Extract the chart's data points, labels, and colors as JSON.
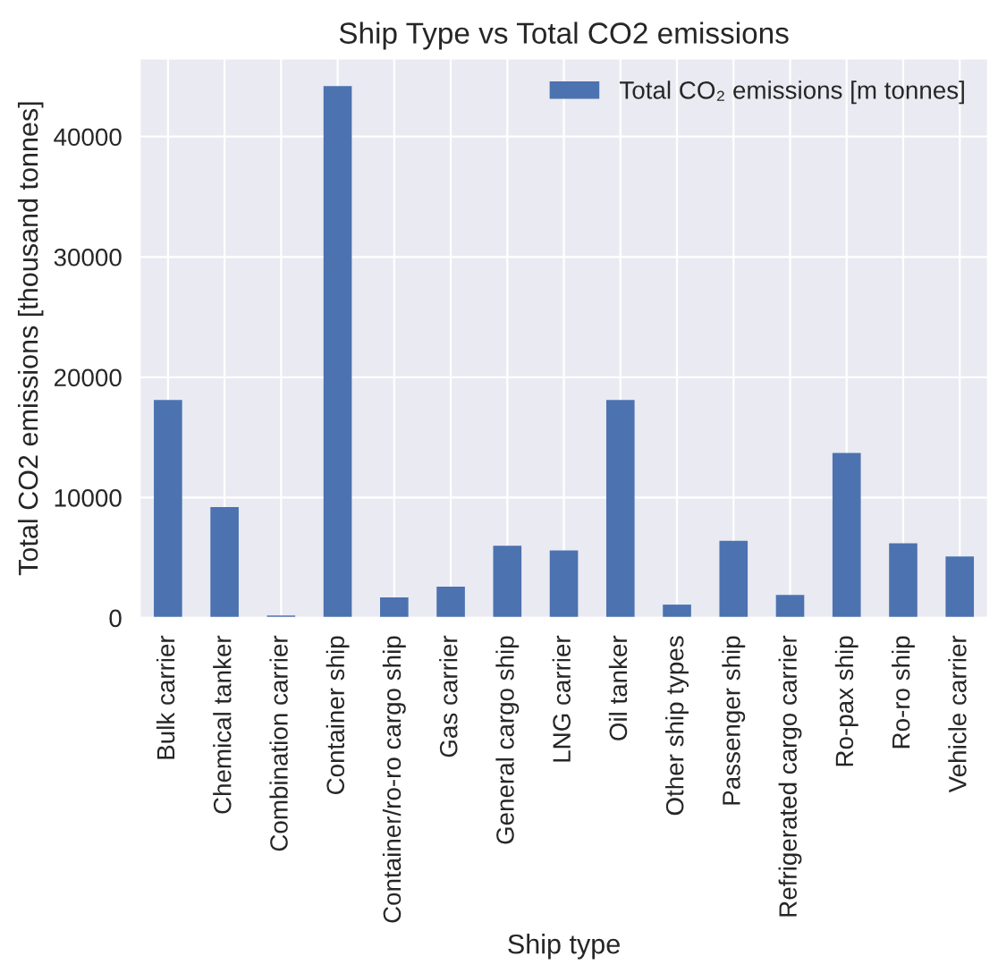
{
  "chart_data": {
    "type": "bar",
    "title": "Ship Type vs Total CO2 emissions",
    "xlabel": "Ship type",
    "ylabel": "Total CO2 emissions [thousand tonnes]",
    "categories": [
      "Bulk carrier",
      "Chemical tanker",
      "Combination carrier",
      "Container ship",
      "Container/ro-ro cargo ship",
      "Gas carrier",
      "General cargo ship",
      "LNG carrier",
      "Oil tanker",
      "Other ship types",
      "Passenger ship",
      "Refrigerated cargo carrier",
      "Ro-pax ship",
      "Ro-ro ship",
      "Vehicle carrier"
    ],
    "series": [
      {
        "name": "Total CO₂ emissions [m tonnes]",
        "color": "#4c72b0",
        "values": [
          18100,
          9200,
          200,
          44200,
          1700,
          2600,
          6000,
          5600,
          18100,
          1100,
          6400,
          1900,
          13700,
          6200,
          5100
        ]
      }
    ],
    "ylim": [
      0,
      46500
    ],
    "yticks": [
      0,
      10000,
      20000,
      30000,
      40000
    ],
    "grid": true,
    "legend": "top right"
  }
}
